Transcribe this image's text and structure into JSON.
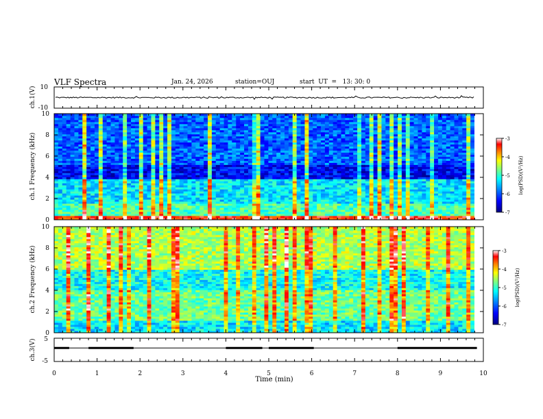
{
  "header": {
    "title": "VLF Spectra",
    "date": "Jan. 24, 2026",
    "station": "station=OUJ",
    "start_ut": "start  UT  =   13: 30: 0"
  },
  "chart_data": [
    {
      "type": "line",
      "name": "ch1-voltage",
      "ylabel": "ch.1(V)",
      "ylim": [
        -10,
        10
      ],
      "y_ticks": [
        "10",
        "-10"
      ],
      "baseline": 0,
      "noise_amplitude": 0.6
    },
    {
      "type": "heatmap",
      "name": "ch1-spectrogram",
      "ylabel": "ch.1  Frequency  (kHz)",
      "ylim": [
        0,
        10
      ],
      "y_ticks": [
        "0",
        "2",
        "4",
        "6",
        "8",
        "10"
      ],
      "colorbar": {
        "label": "log(PSD)(V²/Hz)",
        "range": [
          -7,
          -3
        ],
        "ticks": [
          "-3",
          "-4",
          "-5",
          "-6",
          "-7"
        ]
      },
      "bands": [
        {
          "from": 0,
          "to": 0.4,
          "level": 0.85
        },
        {
          "from": 0.4,
          "to": 1.5,
          "level": 0.45
        },
        {
          "from": 1.5,
          "to": 3.8,
          "level": 0.35
        },
        {
          "from": 3.8,
          "to": 5.2,
          "level": 0.12
        },
        {
          "from": 5.2,
          "to": 10,
          "level": 0.22
        }
      ]
    },
    {
      "type": "heatmap",
      "name": "ch2-spectrogram",
      "ylabel": "ch.2  Frequency  (kHz)",
      "ylim": [
        0,
        10
      ],
      "y_ticks": [
        "0",
        "2",
        "4",
        "6",
        "8",
        "10"
      ],
      "colorbar": {
        "label": "log(PSD)(V²/Hz)",
        "range": [
          -7,
          -3
        ],
        "ticks": [
          "-3",
          "-4",
          "-5",
          "-6",
          "-7"
        ]
      },
      "bands": [
        {
          "from": 0,
          "to": 1.2,
          "level": 0.35
        },
        {
          "from": 1.2,
          "to": 4.0,
          "level": 0.48
        },
        {
          "from": 4.0,
          "to": 6.0,
          "level": 0.38
        },
        {
          "from": 6.0,
          "to": 10,
          "level": 0.55
        }
      ]
    },
    {
      "type": "line",
      "name": "ch3-voltage",
      "ylabel": "ch.3(V)",
      "ylim": [
        -5,
        5
      ],
      "y_ticks": [
        "5",
        "-5"
      ],
      "on_segments": [
        [
          0.0,
          0.35
        ],
        [
          0.8,
          1.85
        ],
        [
          4.0,
          4.85
        ],
        [
          5.0,
          6.05
        ],
        [
          8.0,
          9.85
        ]
      ],
      "on_level": 0.8,
      "off_level": -0.3
    }
  ],
  "x_axis": {
    "label": "Time  (min)",
    "xlim": [
      0,
      10
    ],
    "ticks": [
      "0",
      "1",
      "2",
      "3",
      "4",
      "5",
      "6",
      "7",
      "8",
      "9",
      "10"
    ]
  },
  "colors": {
    "scale": [
      "#00007f",
      "#0000ff",
      "#007fff",
      "#00ffff",
      "#7fff7f",
      "#ffff00",
      "#ff7f00",
      "#ff0000",
      "#ffffff"
    ]
  }
}
